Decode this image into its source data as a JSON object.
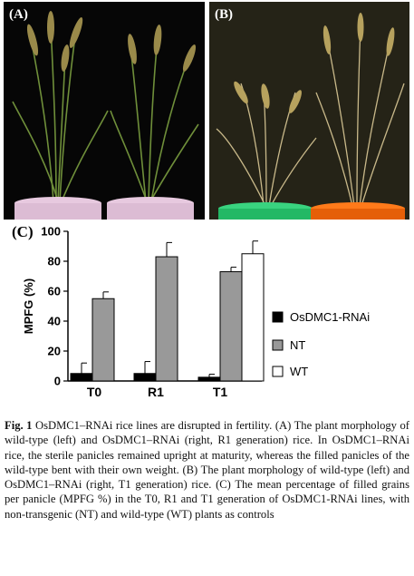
{
  "panels": {
    "a_label": "(A)",
    "b_label": "(B)",
    "c_label": "(C)"
  },
  "chart_data": {
    "type": "bar",
    "categories": [
      "T0",
      "R1",
      "T1"
    ],
    "ylabel": "MPFG (%)",
    "ylim": [
      0,
      100
    ],
    "yticks": [
      0,
      20,
      40,
      60,
      80,
      100
    ],
    "legend_position": "right",
    "series": [
      {
        "name": "OsDMC1-RNAi",
        "color": "#000000",
        "values": [
          5,
          5,
          2.5
        ],
        "errors": [
          7,
          8,
          2
        ]
      },
      {
        "name": "NT",
        "color": "#999999",
        "values": [
          55,
          83,
          73
        ],
        "errors": [
          4.5,
          9.5,
          3
        ]
      },
      {
        "name": "WT",
        "color": "#ffffff",
        "values": [
          null,
          null,
          85
        ],
        "errors": [
          null,
          null,
          8.5
        ]
      }
    ]
  },
  "caption": {
    "figure_label": "Fig. 1",
    "parts": [
      " OsDMC1–RNAi rice lines are disrupted in fertility. ",
      "(A)",
      " The plant morphology of wild-type (left) and OsDMC1–RNAi (right, R1 generation) rice. In OsDMC1–RNAi rice, the sterile panicles remained upright at maturity, whereas the filled panicles of the wild-type bent with their own weight. ",
      "(B)",
      " The plant morphology of wild-type (left) and OsDMC1–RNAi (right, T1 generation) rice. ",
      "(C)",
      " The mean percentage of filled grains per panicle (MPFG %) in the T0, R1 and T1 generation of OsDMC1-RNAi lines, with non-transgenic (NT) and wild-type (WT) plants as controls"
    ]
  }
}
